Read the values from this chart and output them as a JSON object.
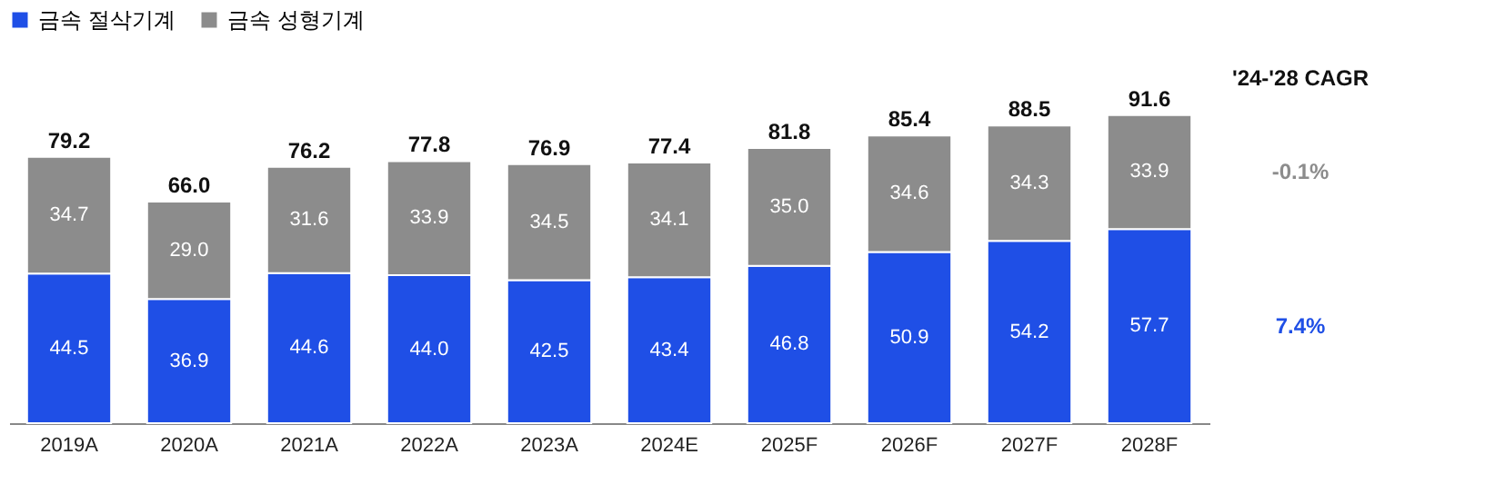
{
  "chart_data": {
    "type": "bar",
    "stacked": true,
    "legend": "top",
    "grid": false,
    "categories": [
      "2019A",
      "2020A",
      "2021A",
      "2022A",
      "2023A",
      "2024E",
      "2025F",
      "2026F",
      "2027F",
      "2028F"
    ],
    "series": [
      {
        "name": "금속 절삭기계",
        "color": "#1f4fe6",
        "values": [
          44.5,
          36.9,
          44.6,
          44.0,
          42.5,
          43.4,
          46.8,
          50.9,
          54.2,
          57.7
        ],
        "value_labels": [
          "44.5",
          "36.9",
          "44.6",
          "44.0",
          "42.5",
          "43.4",
          "46.8",
          "50.9",
          "54.2",
          "57.7"
        ]
      },
      {
        "name": "금속 성형기계",
        "color": "#8c8c8c",
        "values": [
          34.7,
          29.0,
          31.6,
          33.9,
          34.5,
          34.1,
          35.0,
          34.6,
          34.3,
          33.9
        ],
        "value_labels": [
          "34.7",
          "29.0",
          "31.6",
          "33.9",
          "34.5",
          "34.1",
          "35.0",
          "34.6",
          "34.3",
          "33.9"
        ]
      }
    ],
    "totals": [
      "79.2",
      "66.0",
      "76.2",
      "77.8",
      "76.9",
      "77.4",
      "81.8",
      "85.4",
      "88.5",
      "91.6"
    ],
    "annotations": [
      "'24-'28 CAGR",
      "-0.1%",
      "7.4%"
    ]
  }
}
